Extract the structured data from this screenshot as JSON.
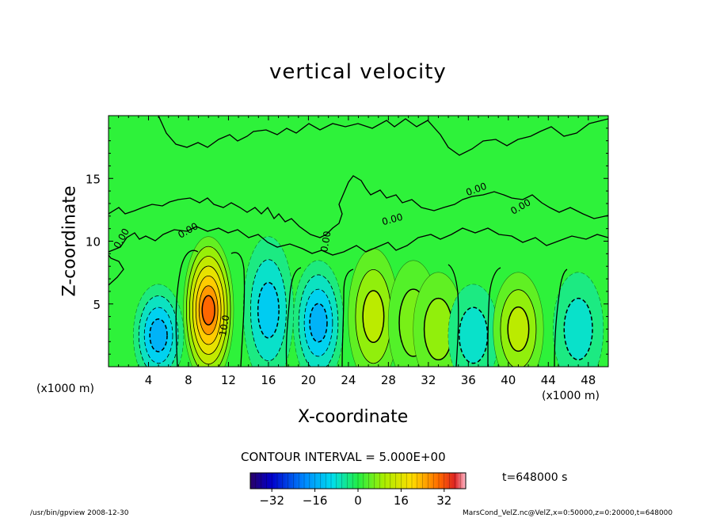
{
  "chart_data": {
    "type": "heatmap",
    "title": "vertical velocity",
    "xlabel": "X-coordinate",
    "ylabel": "Z-coordinate",
    "x_unit": "(x1000 m)",
    "x_unit_left": "(x1000 m)",
    "x_unit_right": "(x1000 m)",
    "xlim": [
      0,
      50
    ],
    "ylim": [
      0,
      20
    ],
    "x_ticks": [
      4,
      8,
      12,
      16,
      20,
      24,
      28,
      32,
      36,
      40,
      44,
      48
    ],
    "y_ticks": [
      5,
      10,
      15
    ],
    "contour_interval_label": "CONTOUR INTERVAL = 5.000E+00",
    "contour_labels": [
      "0.00",
      "0.00",
      "0.00",
      "0.00",
      "0.00",
      "0.00",
      "10.0"
    ],
    "colorbar": {
      "min": -40,
      "max": 40,
      "ticks": [
        -32,
        -16,
        0,
        16,
        32
      ]
    },
    "time_label": "t=648000 s",
    "cells": [
      {
        "x": 5,
        "z": 2.5,
        "w": -15,
        "shape": "min"
      },
      {
        "x": 10,
        "z": 4.5,
        "w": 30,
        "shape": "max"
      },
      {
        "x": 16,
        "z": 4.5,
        "w": -12,
        "shape": "min"
      },
      {
        "x": 21,
        "z": 3.5,
        "w": -15,
        "shape": "min"
      },
      {
        "x": 26.5,
        "z": 4.0,
        "w": 12,
        "shape": "max"
      },
      {
        "x": 30.5,
        "z": 3.5,
        "w": 6,
        "shape": "max"
      },
      {
        "x": 33,
        "z": 3.0,
        "w": 8,
        "shape": "max"
      },
      {
        "x": 36.5,
        "z": 2.5,
        "w": -8,
        "shape": "min"
      },
      {
        "x": 41,
        "z": 3.0,
        "w": 12,
        "shape": "max"
      },
      {
        "x": 47,
        "z": 3.0,
        "w": -8,
        "shape": "min"
      }
    ]
  },
  "footer": {
    "left": "/usr/bin/gpview   2008-12-30",
    "right": "MarsCond_VelZ.nc@VelZ,x=0:50000,z=0:20000,t=648000"
  },
  "colors": {
    "background": "#00ff33",
    "positive": "#ff8800",
    "negative": "#00ddff"
  }
}
